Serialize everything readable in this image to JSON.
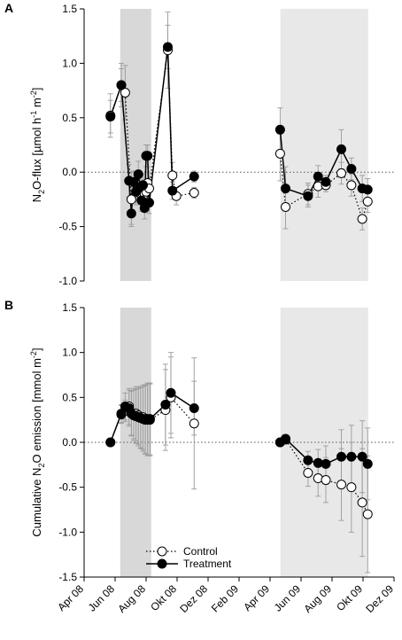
{
  "chart_data": [
    {
      "type": "line",
      "panel_label": "A",
      "ylabel": "N2O-flux [µmol h-1 m-2]",
      "ylabel_parts": {
        "base": "N",
        "sub": "2",
        "mid": "O-flux [µmol h",
        "sup1": "-1",
        "mid2": " m",
        "sup2": "-2",
        "end": "]"
      },
      "ylim": [
        -1.0,
        1.5
      ],
      "yticks": [
        "1.5",
        "1.0",
        "0.5",
        "0.0",
        "-0.5",
        "-1.0"
      ],
      "yticks_values": [
        1.5,
        1.0,
        0.5,
        0.0,
        -0.5,
        -1.0
      ],
      "reference_line": 0,
      "shaded_periods": [
        {
          "start": 2.33,
          "end": 4.33,
          "shade": "#d8d8d8"
        },
        {
          "start": 12.67,
          "end": 18.33,
          "shade": "#e8e8e8"
        }
      ],
      "series": [
        {
          "name": "Control",
          "marker": "open-circle",
          "line": "dotted",
          "segments": [
            {
              "x": [
                1.7,
                2.4,
                2.65,
                3.05,
                3.3,
                3.5,
                3.65,
                3.8,
                3.9,
                4.0,
                4.1,
                4.2,
                5.4,
                5.7,
                5.95,
                7.1
              ],
              "y": [
                0.52,
                0.8,
                0.73,
                -0.25,
                -0.1,
                -0.15,
                -0.2,
                -0.15,
                -0.2,
                -0.18,
                -0.1,
                -0.15,
                1.12,
                -0.03,
                -0.22,
                -0.19
              ],
              "err": [
                0.2,
                0.15,
                0.25,
                0.25,
                0.1,
                0.08,
                0.1,
                0.08,
                0.1,
                0.1,
                0.1,
                0.1,
                0.35,
                0.12,
                0.08,
                0.05
              ]
            },
            {
              "x": [
                12.65,
                13.0,
                14.45,
                15.1,
                15.6,
                16.6,
                17.25,
                17.95,
                18.3
              ],
              "y": [
                0.17,
                -0.32,
                -0.2,
                -0.13,
                -0.12,
                -0.01,
                -0.12,
                -0.43,
                -0.27
              ],
              "err": [
                0.25,
                0.2,
                0.1,
                0.1,
                0.06,
                0.1,
                0.1,
                0.1,
                0.1
              ]
            }
          ]
        },
        {
          "name": "Treatment",
          "marker": "filled-circle",
          "line": "solid",
          "segments": [
            {
              "x": [
                1.7,
                2.4,
                2.9,
                3.05,
                3.2,
                3.35,
                3.5,
                3.6,
                3.7,
                3.8,
                3.9,
                4.0,
                4.1,
                4.2,
                5.4,
                5.7,
                7.1
              ],
              "y": [
                0.51,
                0.8,
                -0.08,
                -0.38,
                -0.09,
                -0.18,
                -0.02,
                -0.14,
                -0.26,
                -0.12,
                -0.33,
                0.15,
                0.15,
                -0.28,
                1.15,
                -0.17,
                -0.04
              ],
              "err": [
                0.15,
                0.2,
                0.15,
                0.1,
                0.1,
                0.12,
                0.12,
                0.1,
                0.1,
                0.1,
                0.1,
                0.1,
                0.1,
                0.1,
                0.2,
                0.08,
                0.05
              ]
            },
            {
              "x": [
                12.65,
                13.0,
                14.45,
                15.1,
                15.6,
                16.6,
                17.25,
                17.95,
                18.3
              ],
              "y": [
                0.39,
                -0.15,
                -0.22,
                -0.04,
                -0.09,
                0.21,
                0.03,
                -0.15,
                -0.16
              ],
              "err": [
                0.2,
                0.2,
                0.1,
                0.1,
                0.06,
                0.18,
                0.1,
                0.12,
                0.1
              ]
            }
          ]
        }
      ]
    },
    {
      "type": "line",
      "panel_label": "B",
      "ylabel": "Cumulative N2O emission [mmol m-2]",
      "ylabel_parts": {
        "base": "Cumulative N",
        "sub": "2",
        "mid": "O emission [mmol m",
        "sup1": "-2",
        "end": "]"
      },
      "ylim": [
        -1.5,
        1.5
      ],
      "yticks": [
        "1.5",
        "1.0",
        "0.5",
        "0.0",
        "-0.5",
        "-1.0",
        "-1.5"
      ],
      "yticks_values": [
        1.5,
        1.0,
        0.5,
        0.0,
        -0.5,
        -1.0,
        -1.5
      ],
      "reference_line": 0,
      "shaded_periods": [
        {
          "start": 2.33,
          "end": 4.33,
          "shade": "#d8d8d8"
        },
        {
          "start": 12.67,
          "end": 18.33,
          "shade": "#e8e8e8"
        }
      ],
      "xticks": [
        "Apr 08",
        "Jun 08",
        "Aug 08",
        "Okt 08",
        "Dez 08",
        "Feb 09",
        "Apr 09",
        "Jun 09",
        "Aug 09",
        "Okt 09",
        "Dez 09"
      ],
      "xticks_values": [
        0,
        2,
        4,
        6,
        8,
        10,
        12,
        14,
        16,
        18,
        20
      ],
      "legend": {
        "position": "bottom-left",
        "entries": [
          "Control",
          "Treatment"
        ]
      },
      "series": [
        {
          "name": "Control",
          "marker": "open-circle",
          "line": "dotted",
          "segments": [
            {
              "x": [
                1.7,
                2.4,
                2.65,
                2.9,
                3.05,
                3.2,
                3.35,
                3.5,
                3.65,
                3.8,
                3.95,
                4.1,
                4.25,
                5.25,
                5.6,
                7.1
              ],
              "y": [
                0.0,
                0.31,
                0.35,
                0.4,
                0.33,
                0.32,
                0.32,
                0.3,
                0.28,
                0.28,
                0.25,
                0.25,
                0.25,
                0.36,
                0.5,
                0.21
              ],
              "err": [
                0.0,
                0.1,
                0.12,
                0.2,
                0.25,
                0.28,
                0.3,
                0.32,
                0.34,
                0.36,
                0.38,
                0.4,
                0.4,
                0.45,
                0.45,
                0.73
              ]
            },
            {
              "x": [
                12.65,
                13.0,
                14.45,
                15.1,
                15.6,
                16.6,
                17.25,
                17.95,
                18.3
              ],
              "y": [
                0.0,
                0.03,
                -0.34,
                -0.4,
                -0.42,
                -0.47,
                -0.5,
                -0.67,
                -0.8
              ],
              "err": [
                0.0,
                0.02,
                0.15,
                0.2,
                0.25,
                0.4,
                0.5,
                0.6,
                0.65
              ]
            }
          ]
        },
        {
          "name": "Treatment",
          "marker": "filled-circle",
          "line": "solid",
          "segments": [
            {
              "x": [
                1.7,
                2.4,
                2.65,
                2.9,
                3.05,
                3.2,
                3.35,
                3.5,
                3.65,
                3.8,
                3.95,
                4.1,
                4.25,
                5.25,
                5.6,
                7.1
              ],
              "y": [
                0.0,
                0.32,
                0.4,
                0.38,
                0.32,
                0.3,
                0.29,
                0.28,
                0.27,
                0.26,
                0.26,
                0.26,
                0.26,
                0.42,
                0.55,
                0.38
              ],
              "err": [
                0.0,
                0.1,
                0.15,
                0.2,
                0.25,
                0.28,
                0.3,
                0.32,
                0.34,
                0.36,
                0.38,
                0.4,
                0.4,
                0.45,
                0.45,
                0.3
              ]
            },
            {
              "x": [
                12.65,
                13.0,
                14.45,
                15.1,
                15.6,
                16.6,
                17.25,
                17.95,
                18.3
              ],
              "y": [
                0.0,
                0.04,
                -0.2,
                -0.23,
                -0.24,
                -0.16,
                -0.16,
                -0.16,
                -0.24
              ],
              "err": [
                0.0,
                0.02,
                0.1,
                0.15,
                0.2,
                0.3,
                0.35,
                0.4,
                0.4
              ]
            }
          ]
        }
      ]
    }
  ]
}
